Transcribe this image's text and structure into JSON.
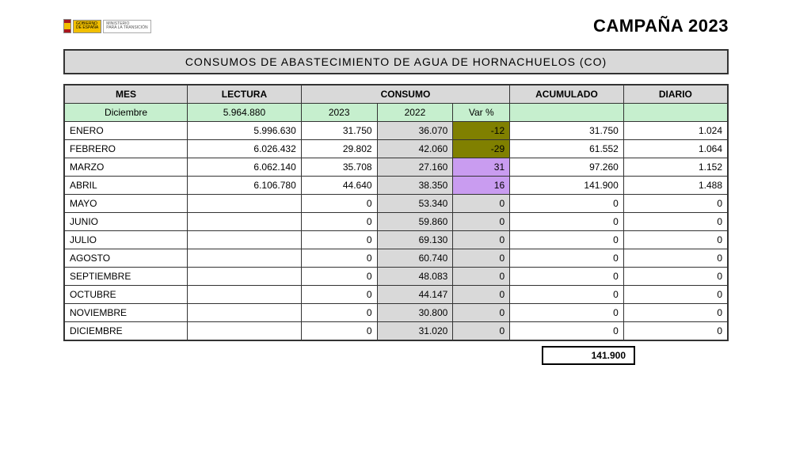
{
  "header": {
    "logo_line1": "GOBIERNO",
    "logo_line2": "DE ESPAÑA",
    "logo2_line1": "MINISTERIO",
    "logo2_line2": "PARA LA TRANSICIÓN",
    "campaign": "CAMPAÑA 2023"
  },
  "title": "CONSUMOS  DE  ABASTECIMIENTO  DE  AGUA  DE  HORNACHUELOS  (CO)",
  "columns": {
    "mes": "MES",
    "lectura": "LECTURA",
    "consumo": "CONSUMO",
    "acumulado": "ACUMULADO",
    "diario": "DIARIO"
  },
  "sub": {
    "y2023": "2023",
    "y2022": "2022",
    "var": "Var %"
  },
  "start_row": {
    "mes": "Diciembre",
    "lectura": "5.964.880"
  },
  "rows": [
    {
      "mes": "ENERO",
      "lectura": "5.996.630",
      "c23": "31.750",
      "c22": "36.070",
      "var": "-12",
      "var_style": "olive",
      "acc": "31.750",
      "dia": "1.024"
    },
    {
      "mes": "FEBRERO",
      "lectura": "6.026.432",
      "c23": "29.802",
      "c22": "42.060",
      "var": "-29",
      "var_style": "olive",
      "acc": "61.552",
      "dia": "1.064"
    },
    {
      "mes": "MARZO",
      "lectura": "6.062.140",
      "c23": "35.708",
      "c22": "27.160",
      "var": "31",
      "var_style": "purple",
      "acc": "97.260",
      "dia": "1.152"
    },
    {
      "mes": "ABRIL",
      "lectura": "6.106.780",
      "c23": "44.640",
      "c22": "38.350",
      "var": "16",
      "var_style": "purple",
      "acc": "141.900",
      "dia": "1.488"
    },
    {
      "mes": "MAYO",
      "lectura": "",
      "c23": "0",
      "c22": "53.340",
      "var": "0",
      "var_style": "gray",
      "acc": "0",
      "dia": "0"
    },
    {
      "mes": "JUNIO",
      "lectura": "",
      "c23": "0",
      "c22": "59.860",
      "var": "0",
      "var_style": "gray",
      "acc": "0",
      "dia": "0"
    },
    {
      "mes": "JULIO",
      "lectura": "",
      "c23": "0",
      "c22": "69.130",
      "var": "0",
      "var_style": "gray",
      "acc": "0",
      "dia": "0"
    },
    {
      "mes": "AGOSTO",
      "lectura": "",
      "c23": "0",
      "c22": "60.740",
      "var": "0",
      "var_style": "gray",
      "acc": "0",
      "dia": "0"
    },
    {
      "mes": "SEPTIEMBRE",
      "lectura": "",
      "c23": "0",
      "c22": "48.083",
      "var": "0",
      "var_style": "gray",
      "acc": "0",
      "dia": "0"
    },
    {
      "mes": "OCTUBRE",
      "lectura": "",
      "c23": "0",
      "c22": "44.147",
      "var": "0",
      "var_style": "gray",
      "acc": "0",
      "dia": "0"
    },
    {
      "mes": "NOVIEMBRE",
      "lectura": "",
      "c23": "0",
      "c22": "30.800",
      "var": "0",
      "var_style": "gray",
      "acc": "0",
      "dia": "0"
    },
    {
      "mes": "DICIEMBRE",
      "lectura": "",
      "c23": "0",
      "c22": "31.020",
      "var": "0",
      "var_style": "gray",
      "acc": "0",
      "dia": "0"
    }
  ],
  "total": "141.900",
  "styling": {
    "header_bg": "#d9d9d9",
    "green_bg": "#c6efce",
    "olive_bg": "#808000",
    "purple_bg": "#c99cf0",
    "gray_bg": "#d9d9d9",
    "border_color": "#333333",
    "font_family": "Arial",
    "body_fontsize": 12,
    "title_fontsize": 14,
    "campaign_fontsize": 22
  }
}
